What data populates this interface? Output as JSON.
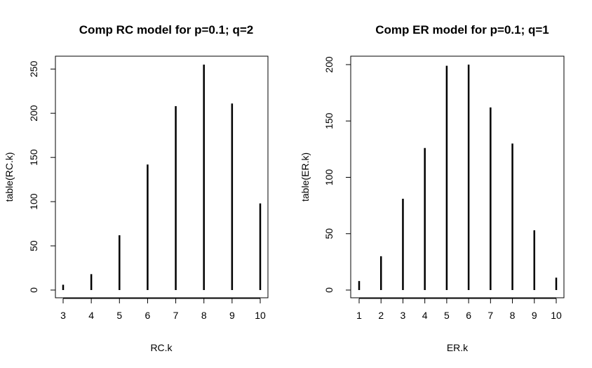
{
  "chart_data": [
    {
      "type": "bar",
      "title": "Comp RC model for p=0.1; q=2",
      "xlabel": "RC.k",
      "ylabel": "table(RC.k)",
      "categories": [
        "3",
        "4",
        "5",
        "6",
        "7",
        "8",
        "9",
        "10"
      ],
      "x": [
        3,
        4,
        5,
        6,
        7,
        8,
        9,
        10
      ],
      "values": [
        6,
        18,
        62,
        142,
        208,
        255,
        211,
        98
      ],
      "xlim": [
        3,
        10
      ],
      "ylim": [
        0,
        255
      ],
      "yticks": [
        "0",
        "50",
        "100",
        "150",
        "200",
        "250"
      ],
      "grid": false,
      "legend": "none"
    },
    {
      "type": "bar",
      "title": "Comp ER model for p=0.1; q=1",
      "xlabel": "ER.k",
      "ylabel": "table(ER.k)",
      "categories": [
        "1",
        "2",
        "3",
        "4",
        "5",
        "6",
        "7",
        "8",
        "9",
        "10"
      ],
      "x": [
        1,
        2,
        3,
        4,
        5,
        6,
        7,
        8,
        9,
        10
      ],
      "values": [
        8,
        30,
        81,
        126,
        199,
        200,
        162,
        130,
        53,
        11
      ],
      "xlim": [
        1,
        10
      ],
      "ylim": [
        0,
        200
      ],
      "yticks": [
        "0",
        "50",
        "100",
        "150",
        "200"
      ],
      "grid": false,
      "legend": "none"
    }
  ]
}
